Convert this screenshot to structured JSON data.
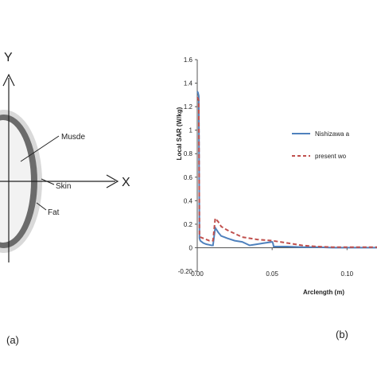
{
  "left_panel": {
    "axis_y_label": "Y",
    "axis_x_label": "X",
    "label_muscle": "Musde",
    "label_skin": "Skin",
    "label_fat": "Fat",
    "panel_label": "(a)",
    "colors": {
      "skin": "#a9a9a9",
      "fat": "#6b6b6b",
      "muscle": "#f2f2f2",
      "outer": "#d9d9d9"
    }
  },
  "right_panel": {
    "panel_label": "(b)"
  },
  "chart_data": {
    "type": "line",
    "ylabel": "Local SAR (W/kg)",
    "xlabel": "Arclength (m)",
    "ylim": [
      -0.2,
      1.6
    ],
    "xlim": [
      0,
      0.12
    ],
    "y_ticks": [
      "1.6",
      "1.4",
      "1.2",
      "1",
      "0.8",
      "0.6",
      "0.4",
      "0.2",
      "0",
      "-0.20"
    ],
    "y_tick_values": [
      1.6,
      1.4,
      1.2,
      1,
      0.8,
      0.6,
      0.4,
      0.2,
      0,
      -0.2
    ],
    "x_ticks": [
      "0.00",
      "0.05",
      "0.10"
    ],
    "x_tick_values": [
      0,
      0.05,
      0.1
    ],
    "legend": [
      "Nishizawa a",
      "present wo"
    ],
    "series": [
      {
        "name": "Nishizawa a",
        "color": "#4f81bd",
        "dash": "solid",
        "x": [
          0,
          0.0005,
          0.001,
          0.0015,
          0.002,
          0.004,
          0.006,
          0.008,
          0.0095,
          0.0105,
          0.012,
          0.014,
          0.016,
          0.018,
          0.02,
          0.025,
          0.03,
          0.035,
          0.04,
          0.045,
          0.05,
          0.0505,
          0.051,
          0.06,
          0.07,
          0.08,
          0.09,
          0.1,
          0.11,
          0.12
        ],
        "y": [
          1.33,
          1.32,
          1.29,
          0.08,
          0.06,
          0.04,
          0.03,
          0.025,
          0.02,
          0.02,
          0.17,
          0.13,
          0.1,
          0.09,
          0.08,
          0.06,
          0.05,
          0.02,
          0.03,
          0.04,
          0.05,
          0.04,
          0.01,
          0.01,
          0.005,
          0.005,
          0.0,
          0.0,
          0.0,
          0.0
        ]
      },
      {
        "name": "present wo",
        "color": "#c0504d",
        "dash": "dashed",
        "x": [
          0,
          0.0005,
          0.001,
          0.0015,
          0.002,
          0.004,
          0.006,
          0.008,
          0.0095,
          0.0105,
          0.012,
          0.014,
          0.016,
          0.02,
          0.025,
          0.03,
          0.04,
          0.05,
          0.06,
          0.07,
          0.08,
          0.09,
          0.1,
          0.11,
          0.12
        ],
        "y": [
          1.28,
          1.27,
          1.25,
          0.11,
          0.09,
          0.08,
          0.07,
          0.06,
          0.06,
          0.06,
          0.25,
          0.22,
          0.18,
          0.15,
          0.12,
          0.09,
          0.07,
          0.06,
          0.04,
          0.02,
          0.01,
          0.005,
          0.005,
          0.005,
          0.005
        ]
      }
    ]
  }
}
